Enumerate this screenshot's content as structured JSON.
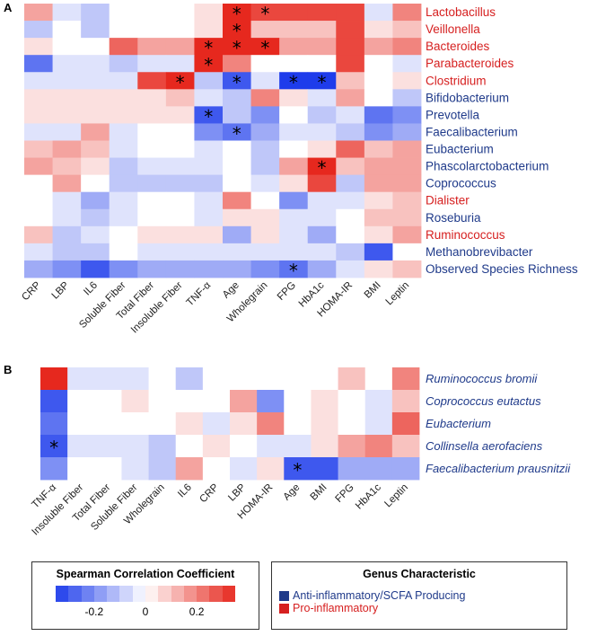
{
  "chart_data": [
    {
      "panel": "A",
      "type": "heatmap",
      "columns": [
        "CRP",
        "LBP",
        "IL6",
        "Soluble Fiber",
        "Total Fiber",
        "Insoluble Fiber",
        "TNF-α",
        "Age",
        "Wholegrain",
        "FPG",
        "HbA1c",
        "HOMA-IR",
        "BMI",
        "Leptin"
      ],
      "rows": [
        {
          "label": "Lactobacillus",
          "group": "pro",
          "values": [
            0.15,
            -0.05,
            -0.1,
            0,
            0,
            0,
            0.05,
            0.4,
            0.3,
            0.3,
            0.3,
            0.3,
            -0.05,
            0.2
          ]
        },
        {
          "label": "Veillonella",
          "group": "pro",
          "values": [
            -0.1,
            0,
            -0.1,
            0,
            0,
            0,
            0.05,
            0.4,
            0.1,
            0.1,
            0.1,
            0.3,
            0.05,
            0.1
          ]
        },
        {
          "label": "Bacteroides",
          "group": "pro",
          "values": [
            0.05,
            0,
            0,
            0.25,
            0.15,
            0.15,
            0.35,
            0.35,
            0.35,
            0.15,
            0.15,
            0.3,
            0.15,
            0.2
          ]
        },
        {
          "label": "Parabacteroides",
          "group": "pro",
          "values": [
            -0.25,
            -0.05,
            -0.05,
            -0.1,
            -0.05,
            -0.05,
            0.35,
            0.2,
            0,
            0,
            0,
            0.3,
            0,
            -0.05
          ]
        },
        {
          "label": "Clostridium",
          "group": "pro",
          "values": [
            -0.05,
            -0.05,
            -0.05,
            -0.05,
            0.3,
            0.35,
            -0.1,
            -0.3,
            -0.05,
            -0.35,
            -0.35,
            0.1,
            0,
            0.05
          ]
        },
        {
          "label": "Bifidobacterium",
          "group": "anti",
          "values": [
            0.05,
            0.05,
            0.05,
            0.05,
            0.05,
            0.1,
            -0.05,
            -0.1,
            0.2,
            0.05,
            -0.05,
            0.15,
            0,
            -0.1
          ]
        },
        {
          "label": "Prevotella",
          "group": "anti",
          "values": [
            0.05,
            0.05,
            0.05,
            0.05,
            0.05,
            0.05,
            -0.3,
            -0.1,
            -0.2,
            0,
            -0.1,
            -0.05,
            -0.25,
            -0.2
          ]
        },
        {
          "label": "Faecalibacterium",
          "group": "anti",
          "values": [
            -0.05,
            -0.05,
            0.15,
            -0.05,
            0,
            0,
            -0.2,
            -0.25,
            -0.15,
            -0.05,
            -0.05,
            -0.1,
            -0.2,
            -0.15
          ]
        },
        {
          "label": "Eubacterium",
          "group": "anti",
          "values": [
            0.1,
            0.15,
            0.1,
            -0.05,
            0,
            0,
            -0.05,
            0,
            -0.1,
            0,
            0.05,
            0.25,
            0.1,
            0.15
          ]
        },
        {
          "label": "Phascolarctobacterium",
          "group": "anti",
          "values": [
            0.15,
            0.1,
            0.05,
            -0.1,
            -0.05,
            -0.05,
            -0.05,
            0,
            -0.1,
            0.15,
            0.35,
            0.1,
            0.15,
            0.15
          ]
        },
        {
          "label": "Coprococcus",
          "group": "anti",
          "values": [
            0,
            0.15,
            0,
            -0.1,
            -0.1,
            -0.1,
            -0.1,
            0,
            -0.05,
            0.05,
            0.3,
            -0.1,
            0.15,
            0.15
          ]
        },
        {
          "label": "Dialister",
          "group": "pro",
          "values": [
            0,
            -0.05,
            -0.15,
            -0.05,
            0,
            0,
            -0.05,
            0.2,
            0,
            -0.2,
            -0.05,
            -0.05,
            0.05,
            0.1
          ]
        },
        {
          "label": "Roseburia",
          "group": "anti",
          "values": [
            0,
            -0.05,
            -0.1,
            -0.05,
            0,
            0,
            -0.05,
            0.05,
            0.05,
            -0.05,
            -0.05,
            0,
            0.1,
            0.1
          ]
        },
        {
          "label": "Ruminococcus",
          "group": "pro",
          "values": [
            0.1,
            -0.1,
            -0.05,
            0,
            0.05,
            0.05,
            0.05,
            -0.15,
            0.05,
            -0.05,
            -0.15,
            0,
            0.05,
            0.15
          ]
        },
        {
          "label": "Methanobrevibacter",
          "group": "anti",
          "values": [
            -0.05,
            -0.1,
            -0.1,
            0,
            -0.05,
            -0.05,
            -0.05,
            -0.05,
            -0.05,
            -0.05,
            -0.05,
            -0.1,
            -0.3,
            0
          ]
        },
        {
          "label": "Observed Species Richness",
          "group": "anti",
          "values": [
            -0.15,
            -0.2,
            -0.3,
            -0.2,
            -0.15,
            -0.15,
            -0.15,
            -0.15,
            -0.2,
            -0.25,
            -0.15,
            -0.05,
            0.05,
            0.1
          ]
        }
      ],
      "significant": [
        [
          0,
          7
        ],
        [
          0,
          8
        ],
        [
          1,
          7
        ],
        [
          2,
          6
        ],
        [
          2,
          7
        ],
        [
          2,
          8
        ],
        [
          3,
          6
        ],
        [
          4,
          5
        ],
        [
          4,
          7
        ],
        [
          4,
          9
        ],
        [
          4,
          10
        ],
        [
          6,
          6
        ],
        [
          7,
          7
        ],
        [
          9,
          10
        ],
        [
          15,
          9
        ]
      ]
    },
    {
      "panel": "B",
      "type": "heatmap",
      "columns": [
        "TNF-α",
        "Insoluble Fiber",
        "Total Fiber",
        "Soluble Fiber",
        "Wholegrain",
        "IL6",
        "CRP",
        "LBP",
        "HOMA-IR",
        "Age",
        "BMI",
        "FPG",
        "HbA1c",
        "Leptin"
      ],
      "rows": [
        {
          "label": "Ruminococcus bromii",
          "values": [
            0.35,
            -0.05,
            -0.05,
            -0.05,
            0,
            -0.1,
            0,
            0,
            0,
            0,
            0,
            0.1,
            0,
            0.2
          ]
        },
        {
          "label": "Coprococcus eutactus",
          "values": [
            -0.3,
            0,
            0,
            0.05,
            0,
            0,
            0,
            0.15,
            -0.2,
            0,
            0.05,
            0,
            -0.05,
            0.1
          ]
        },
        {
          "label": "Eubacterium",
          "values": [
            -0.25,
            0,
            0,
            0,
            0,
            0.05,
            -0.05,
            0.05,
            0.2,
            0,
            0.05,
            0,
            -0.05,
            0.25
          ]
        },
        {
          "label": "Collinsella aerofaciens",
          "values": [
            -0.3,
            -0.05,
            -0.05,
            -0.05,
            -0.1,
            0,
            0.05,
            0,
            -0.05,
            -0.05,
            0.05,
            0.15,
            0.2,
            0.1
          ]
        },
        {
          "label": "Faecalibacterium prausnitzii",
          "values": [
            -0.2,
            0,
            0,
            -0.05,
            -0.1,
            0.15,
            0,
            -0.05,
            0.05,
            -0.3,
            -0.3,
            -0.15,
            -0.15,
            -0.15
          ]
        }
      ],
      "significant": [
        [
          3,
          0
        ],
        [
          4,
          9
        ]
      ]
    }
  ],
  "panels": {
    "a": "A",
    "b": "B"
  },
  "star_symbol": "*",
  "legend": {
    "scale_title": "Spearman Correlation Coefficient",
    "ticks": [
      "-0.2",
      "0",
      "0.2"
    ],
    "tick_values": [
      -0.2,
      0,
      0.2
    ],
    "range": [
      -0.35,
      0.35
    ],
    "genus_title": "Genus Characteristic",
    "anti_label": "Anti-inflammatory/SCFA Producing",
    "pro_label": "Pro-inflammatory",
    "anti_color": "#1f3a8a",
    "pro_color": "#d62020"
  }
}
